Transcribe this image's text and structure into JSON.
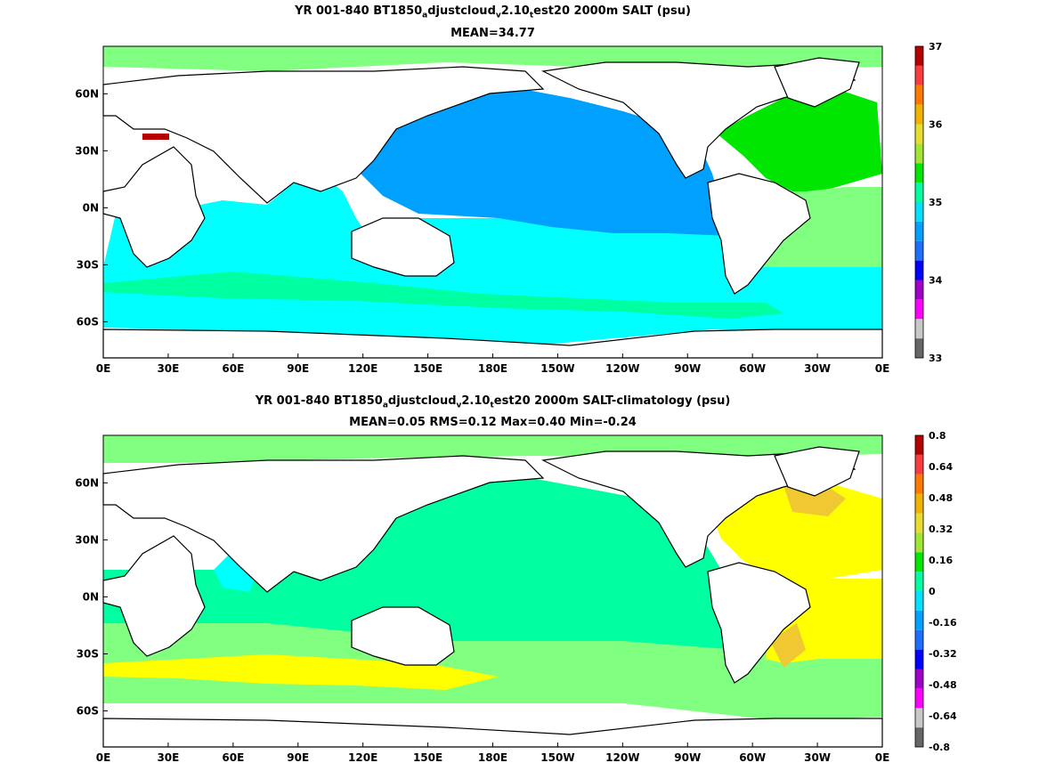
{
  "chart_data": [
    {
      "type": "heatmap",
      "title_parts": [
        "YR 001-840 BT1850",
        "a",
        "djustcloud",
        "v",
        "2.10",
        "t",
        "est20 2000m SALT (psu)"
      ],
      "subtitle": "MEAN=34.77",
      "x_ticks": [
        "0E",
        "30E",
        "60E",
        "90E",
        "120E",
        "150E",
        "180E",
        "150W",
        "120W",
        "90W",
        "60W",
        "30W",
        "0E"
      ],
      "y_ticks": [
        "60N",
        "30N",
        "0N",
        "30S",
        "60S"
      ],
      "colorbar": {
        "colors": [
          "#666666",
          "#c8c8c8",
          "#ff00ff",
          "#a000c8",
          "#0000ff",
          "#1e6eff",
          "#00a0ff",
          "#00e0ff",
          "#00ffa0",
          "#00e600",
          "#a0e632",
          "#e6dc32",
          "#f0b400",
          "#ff7800",
          "#fa3c3c",
          "#b40000"
        ],
        "tick_labels": [
          "33",
          "34",
          "35",
          "36",
          "37"
        ],
        "tick_index": [
          0,
          4,
          8,
          12,
          16
        ]
      },
      "regions": [
        {
          "name": "North Pacific",
          "value": 34.6,
          "color": "#00a0ff"
        },
        {
          "name": "Indian Ocean",
          "value": 34.75,
          "color": "#00ffff"
        },
        {
          "name": "Southern Ocean",
          "value": 34.75,
          "color": "#00ffff"
        },
        {
          "name": "South Pacific",
          "value": 34.75,
          "color": "#00ffff"
        },
        {
          "name": "North Atlantic",
          "value": 35.1,
          "color": "#00e600"
        },
        {
          "name": "South Atlantic",
          "value": 34.9,
          "color": "#80ff80"
        }
      ]
    },
    {
      "type": "heatmap",
      "title_parts": [
        "YR 001-840 BT1850",
        "a",
        "djustcloud",
        "v",
        "2.10",
        "t",
        "est20 2000m SALT-climatology (psu)"
      ],
      "subtitle": "MEAN=0.05   RMS=0.12   Max=0.40   Min=-0.24",
      "x_ticks": [
        "0E",
        "30E",
        "60E",
        "90E",
        "120E",
        "150E",
        "180E",
        "150W",
        "120W",
        "90W",
        "60W",
        "30W",
        "0E"
      ],
      "y_ticks": [
        "60N",
        "30N",
        "0N",
        "30S",
        "60S"
      ],
      "colorbar": {
        "colors": [
          "#666666",
          "#c8c8c8",
          "#ff00ff",
          "#a000c8",
          "#0000ff",
          "#1e6eff",
          "#00a0ff",
          "#00e0ff",
          "#00ffa0",
          "#00e600",
          "#a0e632",
          "#e6dc32",
          "#f0b400",
          "#ff7800",
          "#fa3c3c",
          "#b40000"
        ],
        "tick_labels": [
          "-0.8",
          "-0.64",
          "-0.48",
          "-0.32",
          "-0.16",
          "0",
          "0.16",
          "0.32",
          "0.48",
          "0.64",
          "0.8"
        ],
        "tick_index": [
          0,
          1.6,
          3.2,
          4.8,
          6.4,
          8,
          9.6,
          11.2,
          12.8,
          14.4,
          16
        ]
      },
      "regions": [
        {
          "name": "Pacific",
          "value": 0.03,
          "color": "#00ffa0"
        },
        {
          "name": "North Atlantic",
          "value": 0.25,
          "color": "#ffff00"
        },
        {
          "name": "South Atlantic",
          "value": 0.25,
          "color": "#ffff00"
        },
        {
          "name": "Southern Ocean",
          "value": 0.1,
          "color": "#80ff80"
        },
        {
          "name": "Arabian Sea",
          "value": -0.1,
          "color": "#00ffff"
        }
      ]
    }
  ]
}
